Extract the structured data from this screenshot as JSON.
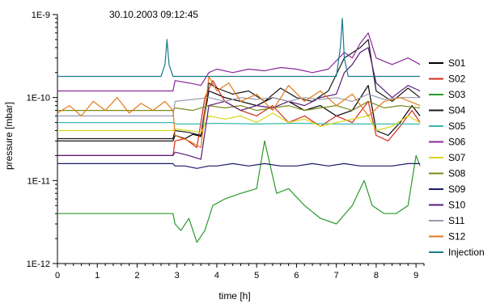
{
  "chart_data": {
    "type": "line",
    "title": "30.10.2003 09:12:45",
    "xlabel": "time [h]",
    "ylabel": "pressure [mbar]",
    "xlim": [
      0,
      9.2
    ],
    "ylim": [
      1e-12,
      1e-09
    ],
    "yscale": "log",
    "x_ticks": [
      0,
      1,
      2,
      3,
      4,
      5,
      6,
      7,
      8,
      9
    ],
    "x_tick_labels": [
      "0",
      "1",
      "2",
      "3",
      "4",
      "5",
      "6",
      "7",
      "8",
      "9"
    ],
    "y_ticks": [
      1e-12,
      1e-11,
      1e-10,
      1e-09
    ],
    "y_tick_labels": [
      "1E-12",
      "1E-11",
      "1E-10",
      "1E-9"
    ],
    "grid": false,
    "legend_position": "right",
    "series": [
      {
        "name": "S01",
        "color": "#000000",
        "x": [
          0,
          2.9,
          2.95,
          3.2,
          3.4,
          3.6,
          3.8,
          4.0,
          4.2,
          4.6,
          5.0,
          5.4,
          5.8,
          6.2,
          6.6,
          7.0,
          7.4,
          7.8,
          8.0,
          8.3,
          8.6,
          8.9,
          9.1
        ],
        "y": [
          3e-11,
          3e-11,
          3.5e-11,
          3.2e-11,
          3.6e-11,
          3.4e-11,
          1.2e-10,
          1.1e-10,
          1e-10,
          9e-11,
          8e-11,
          1e-10,
          9e-11,
          7e-11,
          8e-11,
          6e-11,
          7e-11,
          1.4e-10,
          4e-11,
          3.5e-11,
          5e-11,
          8e-11,
          6e-11
        ]
      },
      {
        "name": "S02",
        "color": "#d62a1e",
        "x": [
          0,
          2.9,
          2.95,
          3.2,
          3.5,
          3.7,
          3.9,
          4.2,
          4.6,
          5.0,
          5.4,
          5.8,
          6.2,
          6.6,
          7.0,
          7.4,
          7.8,
          8.0,
          8.3,
          8.6,
          8.9,
          9.1
        ],
        "y": [
          2e-11,
          2e-11,
          3e-11,
          3.2e-11,
          2.5e-11,
          1e-10,
          1.6e-10,
          9e-11,
          7e-11,
          6e-11,
          8e-11,
          5e-11,
          6e-11,
          4.5e-11,
          6e-11,
          5e-11,
          9e-11,
          3.5e-11,
          3e-11,
          4.5e-11,
          7e-11,
          5e-11
        ]
      },
      {
        "name": "S03",
        "color": "#2a9a2a",
        "x": [
          0,
          2.9,
          2.95,
          3.1,
          3.3,
          3.5,
          3.7,
          3.9,
          4.2,
          4.6,
          5.0,
          5.2,
          5.5,
          5.8,
          6.2,
          6.6,
          7.0,
          7.4,
          7.7,
          7.9,
          8.2,
          8.5,
          8.8,
          9.0,
          9.1
        ],
        "y": [
          4e-12,
          4e-12,
          3e-12,
          2.5e-12,
          3.5e-12,
          1.8e-12,
          2.5e-12,
          5e-12,
          6e-12,
          7e-12,
          8e-12,
          3e-11,
          7e-12,
          8e-12,
          5e-12,
          3.5e-12,
          3e-12,
          5e-12,
          1e-11,
          5e-12,
          4e-12,
          4e-12,
          5e-12,
          2e-11,
          1.5e-11
        ]
      },
      {
        "name": "S04",
        "color": "#1a1a1a",
        "x": [
          0,
          2.9,
          2.95,
          3.3,
          3.6,
          3.8,
          4.0,
          4.4,
          4.8,
          5.2,
          5.6,
          6.0,
          6.4,
          6.8,
          7.2,
          7.6,
          7.8,
          8.0,
          8.4,
          8.8,
          9.1
        ],
        "y": [
          3.2e-11,
          3.2e-11,
          4e-11,
          3.8e-11,
          3.5e-11,
          1.5e-10,
          1.3e-10,
          1.1e-10,
          1.2e-10,
          9e-11,
          1.3e-10,
          1e-10,
          9e-11,
          1.2e-10,
          3e-10,
          4e-10,
          5e-10,
          1.2e-10,
          9e-11,
          1.3e-10,
          1e-10
        ]
      },
      {
        "name": "S05",
        "color": "#3ab8b0",
        "x": [
          0,
          2.9,
          3.0,
          3.5,
          4.0,
          5.0,
          6.0,
          7.0,
          8.0,
          9.1
        ],
        "y": [
          5e-11,
          5e-11,
          4.8e-11,
          4.8e-11,
          4.9e-11,
          4.8e-11,
          4.9e-11,
          4.8e-11,
          4.8e-11,
          4.8e-11
        ]
      },
      {
        "name": "S06",
        "color": "#8a2a9a",
        "x": [
          0,
          2.9,
          2.95,
          3.3,
          3.6,
          3.8,
          4.0,
          4.4,
          4.8,
          5.2,
          5.6,
          6.0,
          6.4,
          6.8,
          7.2,
          7.4,
          7.6,
          7.8,
          8.0,
          8.4,
          8.8,
          9.1
        ],
        "y": [
          1.2e-10,
          1.2e-10,
          1.6e-10,
          1.5e-10,
          1.4e-10,
          2e-10,
          2.2e-10,
          2e-10,
          2.2e-10,
          2.1e-10,
          2.3e-10,
          2.2e-10,
          2e-10,
          2.2e-10,
          3.5e-10,
          3e-10,
          4.5e-10,
          6e-10,
          3e-10,
          2.5e-10,
          3e-10,
          2.5e-10
        ]
      },
      {
        "name": "S07",
        "color": "#d8d81a",
        "x": [
          0,
          2.9,
          2.95,
          3.3,
          3.6,
          3.8,
          4.2,
          4.6,
          5.0,
          5.4,
          5.8,
          6.2,
          6.6,
          7.0,
          7.4,
          7.8,
          8.0,
          8.4,
          8.8,
          9.1
        ],
        "y": [
          4e-11,
          4e-11,
          4.2e-11,
          4e-11,
          3.8e-11,
          6e-11,
          5.5e-11,
          6e-11,
          5e-11,
          6.5e-11,
          5e-11,
          5.5e-11,
          4.5e-11,
          5e-11,
          5.5e-11,
          6e-11,
          4e-11,
          4.5e-11,
          6e-11,
          5e-11
        ]
      },
      {
        "name": "S08",
        "color": "#7a8a1a",
        "x": [
          0,
          2.9,
          2.95,
          3.4,
          3.8,
          4.2,
          4.6,
          5.0,
          5.4,
          5.8,
          6.2,
          6.6,
          7.0,
          7.4,
          7.8,
          8.2,
          8.6,
          9.1
        ],
        "y": [
          7e-11,
          7e-11,
          7.5e-11,
          7e-11,
          8e-11,
          7.5e-11,
          8e-11,
          7e-11,
          7.5e-11,
          8e-11,
          7e-11,
          7.5e-11,
          8e-11,
          7e-11,
          9e-11,
          7.5e-11,
          8e-11,
          7.5e-11
        ]
      },
      {
        "name": "S09",
        "color": "#1a1a6a",
        "x": [
          0,
          2.9,
          2.95,
          3.2,
          3.5,
          3.8,
          4.0,
          4.4,
          4.8,
          5.2,
          5.6,
          6.0,
          6.4,
          6.8,
          7.2,
          7.6,
          8.0,
          8.4,
          8.8,
          9.1
        ],
        "y": [
          1.6e-11,
          1.6e-11,
          1.5e-11,
          1.5e-11,
          1.4e-11,
          1.5e-11,
          1.5e-11,
          1.6e-11,
          1.5e-11,
          1.6e-11,
          1.5e-11,
          1.5e-11,
          1.6e-11,
          1.5e-11,
          1.6e-11,
          1.5e-11,
          1.5e-11,
          1.5e-11,
          1.6e-11,
          1.6e-11
        ]
      },
      {
        "name": "S10",
        "color": "#5a1a7a",
        "x": [
          0,
          2.9,
          2.95,
          3.3,
          3.6,
          3.8,
          4.2,
          4.6,
          5.0,
          5.4,
          5.8,
          6.2,
          6.6,
          7.0,
          7.2,
          7.4,
          7.6,
          7.8,
          8.0,
          8.4,
          8.8,
          9.1
        ],
        "y": [
          2e-11,
          2e-11,
          2.2e-11,
          2e-11,
          1.8e-11,
          8e-11,
          9e-11,
          7e-11,
          8e-11,
          7.5e-11,
          9e-11,
          8e-11,
          1e-10,
          1.1e-10,
          2e-10,
          2.5e-10,
          3.5e-10,
          4e-10,
          1.5e-10,
          1e-10,
          1.4e-10,
          1.2e-10
        ]
      },
      {
        "name": "S11",
        "color": "#9a9ab0",
        "x": [
          0,
          2.9,
          2.95,
          3.4,
          3.8,
          4.2,
          4.6,
          5.0,
          5.4,
          5.8,
          6.2,
          6.6,
          7.0,
          7.4,
          7.8,
          8.2,
          8.6,
          9.1
        ],
        "y": [
          6e-11,
          6e-11,
          9e-11,
          9.5e-11,
          1e-10,
          9e-11,
          1e-10,
          9.5e-11,
          1e-10,
          9e-11,
          1e-10,
          9.5e-11,
          1e-10,
          9e-11,
          1.1e-10,
          9.5e-11,
          1e-10,
          1e-10
        ]
      },
      {
        "name": "S12",
        "color": "#e07a1a",
        "x": [
          0,
          0.3,
          0.6,
          0.9,
          1.2,
          1.5,
          1.8,
          2.1,
          2.4,
          2.7,
          2.9,
          2.95,
          3.3,
          3.6,
          3.8,
          4.0,
          4.3,
          4.6,
          5.0,
          5.4,
          5.8,
          6.2,
          6.6,
          7.0,
          7.4,
          7.8,
          8.2,
          8.6,
          9.1
        ],
        "y": [
          6.5e-11,
          8e-11,
          6e-11,
          9e-11,
          7e-11,
          1e-10,
          6.5e-11,
          8.5e-11,
          7e-11,
          9e-11,
          7e-11,
          3.5e-11,
          3e-11,
          2.5e-11,
          1.8e-10,
          1.2e-10,
          1.5e-10,
          9e-11,
          1.1e-10,
          7e-11,
          1.4e-10,
          9e-11,
          1.2e-10,
          8e-11,
          1.1e-10,
          6e-11,
          9e-11,
          1e-10,
          8e-11
        ]
      },
      {
        "name": "Injection",
        "color": "#1a7a8a",
        "x": [
          0,
          0.5,
          1.0,
          2.0,
          2.6,
          2.7,
          2.75,
          2.8,
          2.9,
          3.5,
          4.5,
          5.5,
          6.5,
          7.0,
          7.1,
          7.15,
          7.2,
          7.3,
          8.0,
          9.1
        ],
        "y": [
          1.8e-10,
          1.8e-10,
          1.8e-10,
          1.8e-10,
          1.8e-10,
          2.5e-10,
          5e-10,
          2.5e-10,
          1.8e-10,
          1.8e-10,
          1.8e-10,
          1.8e-10,
          1.8e-10,
          1.8e-10,
          4e-10,
          9e-10,
          3e-10,
          1.8e-10,
          1.8e-10,
          1.8e-10
        ]
      }
    ]
  }
}
